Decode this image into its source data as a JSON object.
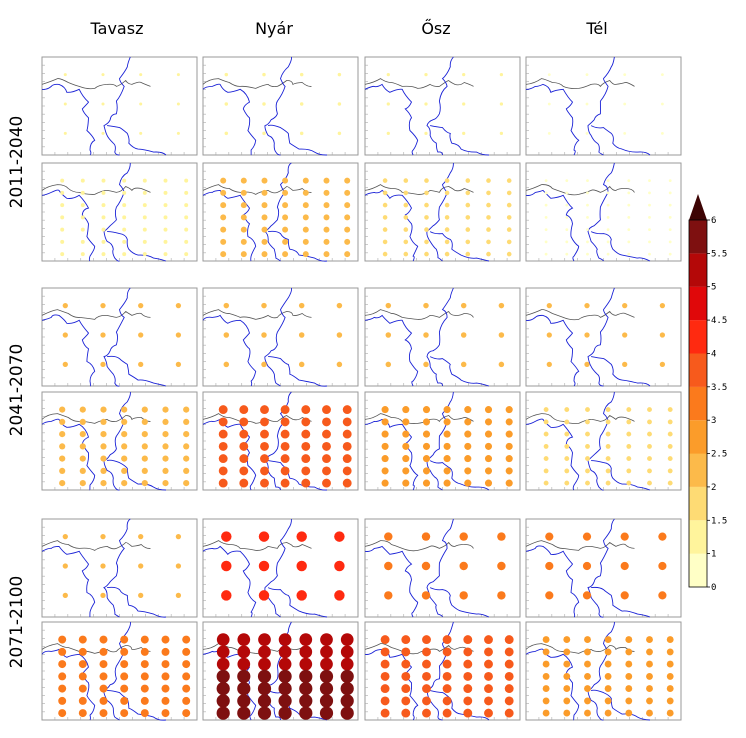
{
  "chart_data": {
    "type": "map-grid",
    "columns": [
      "Tavasz",
      "Nyár",
      "Ősz",
      "Tél"
    ],
    "rows": [
      "2011-2040",
      "2041-2070",
      "2071-2100"
    ],
    "colorbar": {
      "ticks": [
        "0",
        "1",
        "1.5",
        "2",
        "2.5",
        "3",
        "3.5",
        "4",
        "4.5",
        "5",
        "5.5",
        "6"
      ],
      "bins": [
        {
          "min": 0,
          "max": 1,
          "color": "#ffffc6"
        },
        {
          "min": 1,
          "max": 1.5,
          "color": "#fff49c"
        },
        {
          "min": 1.5,
          "max": 2,
          "color": "#fedb74"
        },
        {
          "min": 2,
          "max": 2.5,
          "color": "#fcba4a"
        },
        {
          "min": 2.5,
          "max": 3,
          "color": "#fb9c2a"
        },
        {
          "min": 3,
          "max": 3.5,
          "color": "#fb7a1c"
        },
        {
          "min": 3.5,
          "max": 4,
          "color": "#f75a1c"
        },
        {
          "min": 4,
          "max": 4.5,
          "color": "#ff2a10"
        },
        {
          "min": 4.5,
          "max": 5,
          "color": "#e0080a"
        },
        {
          "min": 5,
          "max": 5.5,
          "color": "#b40808"
        },
        {
          "min": 5.5,
          "max": 6,
          "color": "#7e1010"
        },
        {
          "min": 6,
          "max": 99,
          "color": "#3d0404",
          "extend": "triangle"
        }
      ]
    },
    "panels": [
      {
        "row": "2011-2040",
        "grid": "coarse",
        "season": "Tavasz",
        "value": 1.0
      },
      {
        "row": "2011-2040",
        "grid": "coarse",
        "season": "Nyár",
        "value": 1.2
      },
      {
        "row": "2011-2040",
        "grid": "coarse",
        "season": "Ősz",
        "value": 1.1
      },
      {
        "row": "2011-2040",
        "grid": "coarse",
        "season": "Tél",
        "value": 0.9
      },
      {
        "row": "2011-2040",
        "grid": "fine",
        "season": "Tavasz",
        "value": 1.4
      },
      {
        "row": "2011-2040",
        "grid": "fine",
        "season": "Nyár",
        "value": 2.3
      },
      {
        "row": "2011-2040",
        "grid": "fine",
        "season": "Ősz",
        "value": 1.7
      },
      {
        "row": "2011-2040",
        "grid": "fine",
        "season": "Tél",
        "value": 0.8
      },
      {
        "row": "2041-2070",
        "grid": "coarse",
        "season": "Tavasz",
        "value": 2.0
      },
      {
        "row": "2041-2070",
        "grid": "coarse",
        "season": "Nyár",
        "value": 2.1
      },
      {
        "row": "2041-2070",
        "grid": "coarse",
        "season": "Ősz",
        "value": 2.1
      },
      {
        "row": "2041-2070",
        "grid": "coarse",
        "season": "Tél",
        "value": 2.0
      },
      {
        "row": "2041-2070",
        "grid": "fine",
        "season": "Tavasz",
        "value": 2.4
      },
      {
        "row": "2041-2070",
        "grid": "fine",
        "season": "Nyár",
        "value": 3.6
      },
      {
        "row": "2041-2070",
        "grid": "fine",
        "season": "Ősz",
        "value": 2.8
      },
      {
        "row": "2041-2070",
        "grid": "fine",
        "season": "Tél",
        "value": 1.8
      },
      {
        "row": "2071-2100",
        "grid": "coarse",
        "season": "Tavasz",
        "value": 2.0
      },
      {
        "row": "2071-2100",
        "grid": "coarse",
        "season": "Nyár",
        "value": 4.3
      },
      {
        "row": "2071-2100",
        "grid": "coarse",
        "season": "Ősz",
        "value": 3.4
      },
      {
        "row": "2071-2100",
        "grid": "coarse",
        "season": "Tél",
        "value": 3.3
      },
      {
        "row": "2071-2100",
        "grid": "fine",
        "season": "Tavasz",
        "value": 3.2
      },
      {
        "row": "2071-2100",
        "grid": "fine",
        "season": "Nyár",
        "value": 5.3,
        "south_value": 5.7
      },
      {
        "row": "2071-2100",
        "grid": "fine",
        "season": "Ősz",
        "value": 3.6
      },
      {
        "row": "2071-2100",
        "grid": "fine",
        "season": "Tél",
        "value": 2.7
      }
    ]
  }
}
